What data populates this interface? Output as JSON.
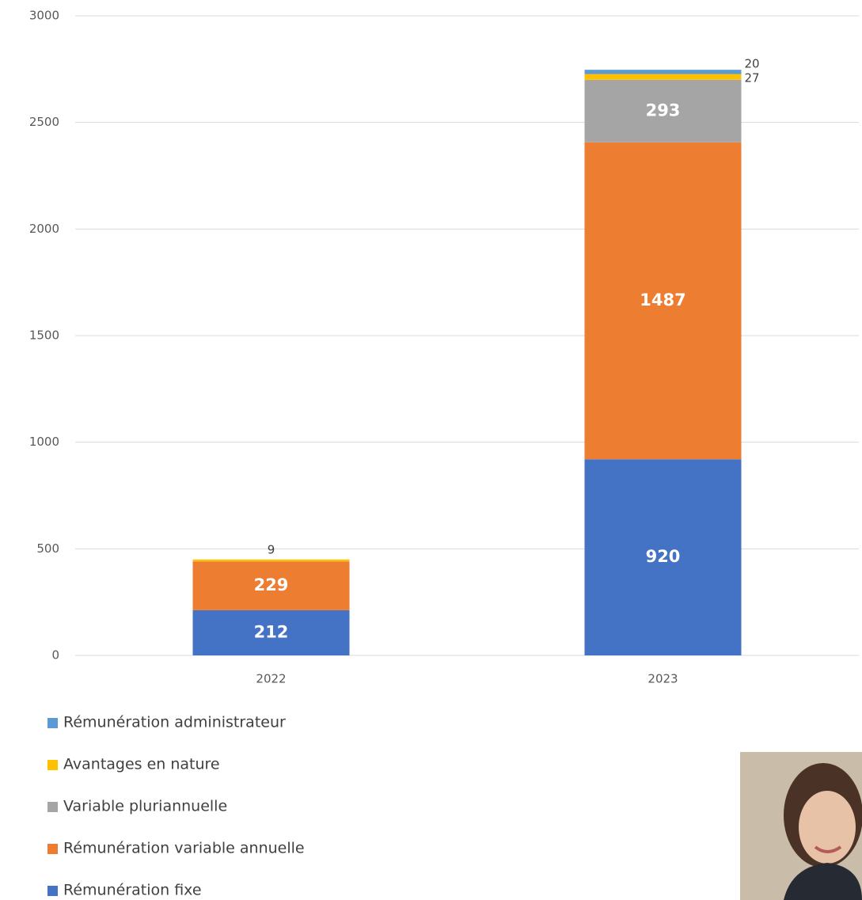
{
  "chart_data": {
    "type": "stacked_bar",
    "categories": [
      "2022",
      "2023"
    ],
    "series": [
      {
        "name": "Rémunération fixe",
        "color": "#4472c4",
        "values": [
          212,
          920
        ]
      },
      {
        "name": "Rémunération variable annuelle",
        "color": "#ed7d31",
        "values": [
          229,
          1487
        ]
      },
      {
        "name": "Variable pluriannuelle",
        "color": "#a5a5a5",
        "values": [
          null,
          293
        ]
      },
      {
        "name": "Avantages en nature",
        "color": "#ffc000",
        "values": [
          9,
          27
        ]
      },
      {
        "name": "Rémunération administrateur",
        "color": "#5b9bd5",
        "values": [
          null,
          20
        ]
      }
    ],
    "ylim": [
      0,
      3000
    ],
    "yticks": [
      0,
      500,
      1000,
      1500,
      2000,
      2500,
      3000
    ],
    "grid": true
  }
}
